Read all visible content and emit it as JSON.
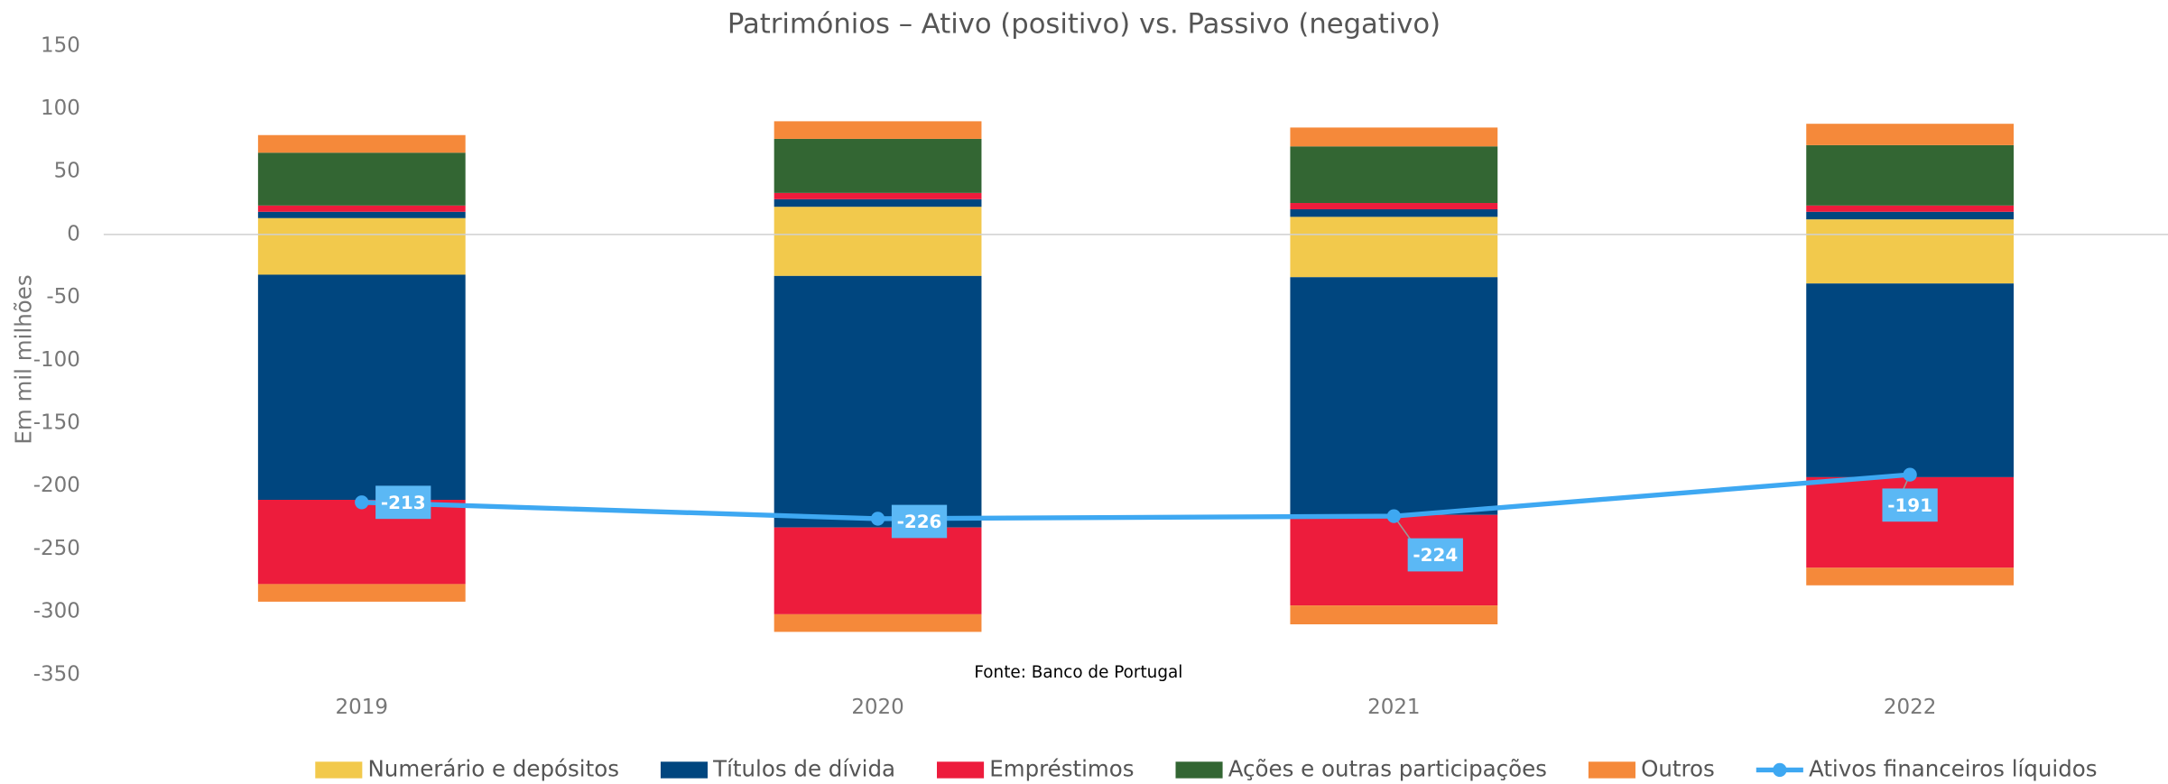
{
  "chart_data": {
    "type": "bar",
    "stacked": true,
    "title": "Patrimónios – Ativo (positivo) vs. Passivo (negativo)",
    "y_label": "Em mil milhões",
    "source": "Fonte: Banco de Portugal",
    "categories": [
      "2019",
      "2020",
      "2021",
      "2022"
    ],
    "ylim": [
      -350,
      150
    ],
    "yticks": [
      -350,
      -300,
      -250,
      -200,
      -150,
      -100,
      -50,
      0,
      50,
      100,
      150
    ],
    "series": [
      {
        "name": "Numerário e depósitos",
        "color": "#f2c94c",
        "values": [
          13,
          22,
          14,
          12
        ],
        "negative_values": [
          -32,
          -33,
          -34,
          -39
        ]
      },
      {
        "name": "Títulos de dívida",
        "color": "#00467f",
        "values": [
          5,
          6,
          6,
          6
        ],
        "negative_values": [
          -179,
          -200,
          -189,
          -154
        ]
      },
      {
        "name": "Empréstimos",
        "color": "#ed1c3c",
        "values": [
          5,
          5,
          5,
          5
        ],
        "negative_values": [
          -67,
          -69,
          -72,
          -72
        ]
      },
      {
        "name": "Ações e outras participações",
        "color": "#336633",
        "values": [
          42,
          43,
          45,
          48
        ],
        "negative_values": [
          0,
          0,
          0,
          0
        ]
      },
      {
        "name": "Outros",
        "color": "#f5893a",
        "values": [
          14,
          14,
          15,
          17
        ],
        "negative_values": [
          -14,
          -14,
          -15,
          -14
        ]
      }
    ],
    "line": {
      "name": "Ativos financeiros líquidos",
      "color": "#3ea8f2",
      "label_color": "#5bb8f5",
      "values": [
        -213,
        -226,
        -224,
        -191
      ]
    }
  }
}
